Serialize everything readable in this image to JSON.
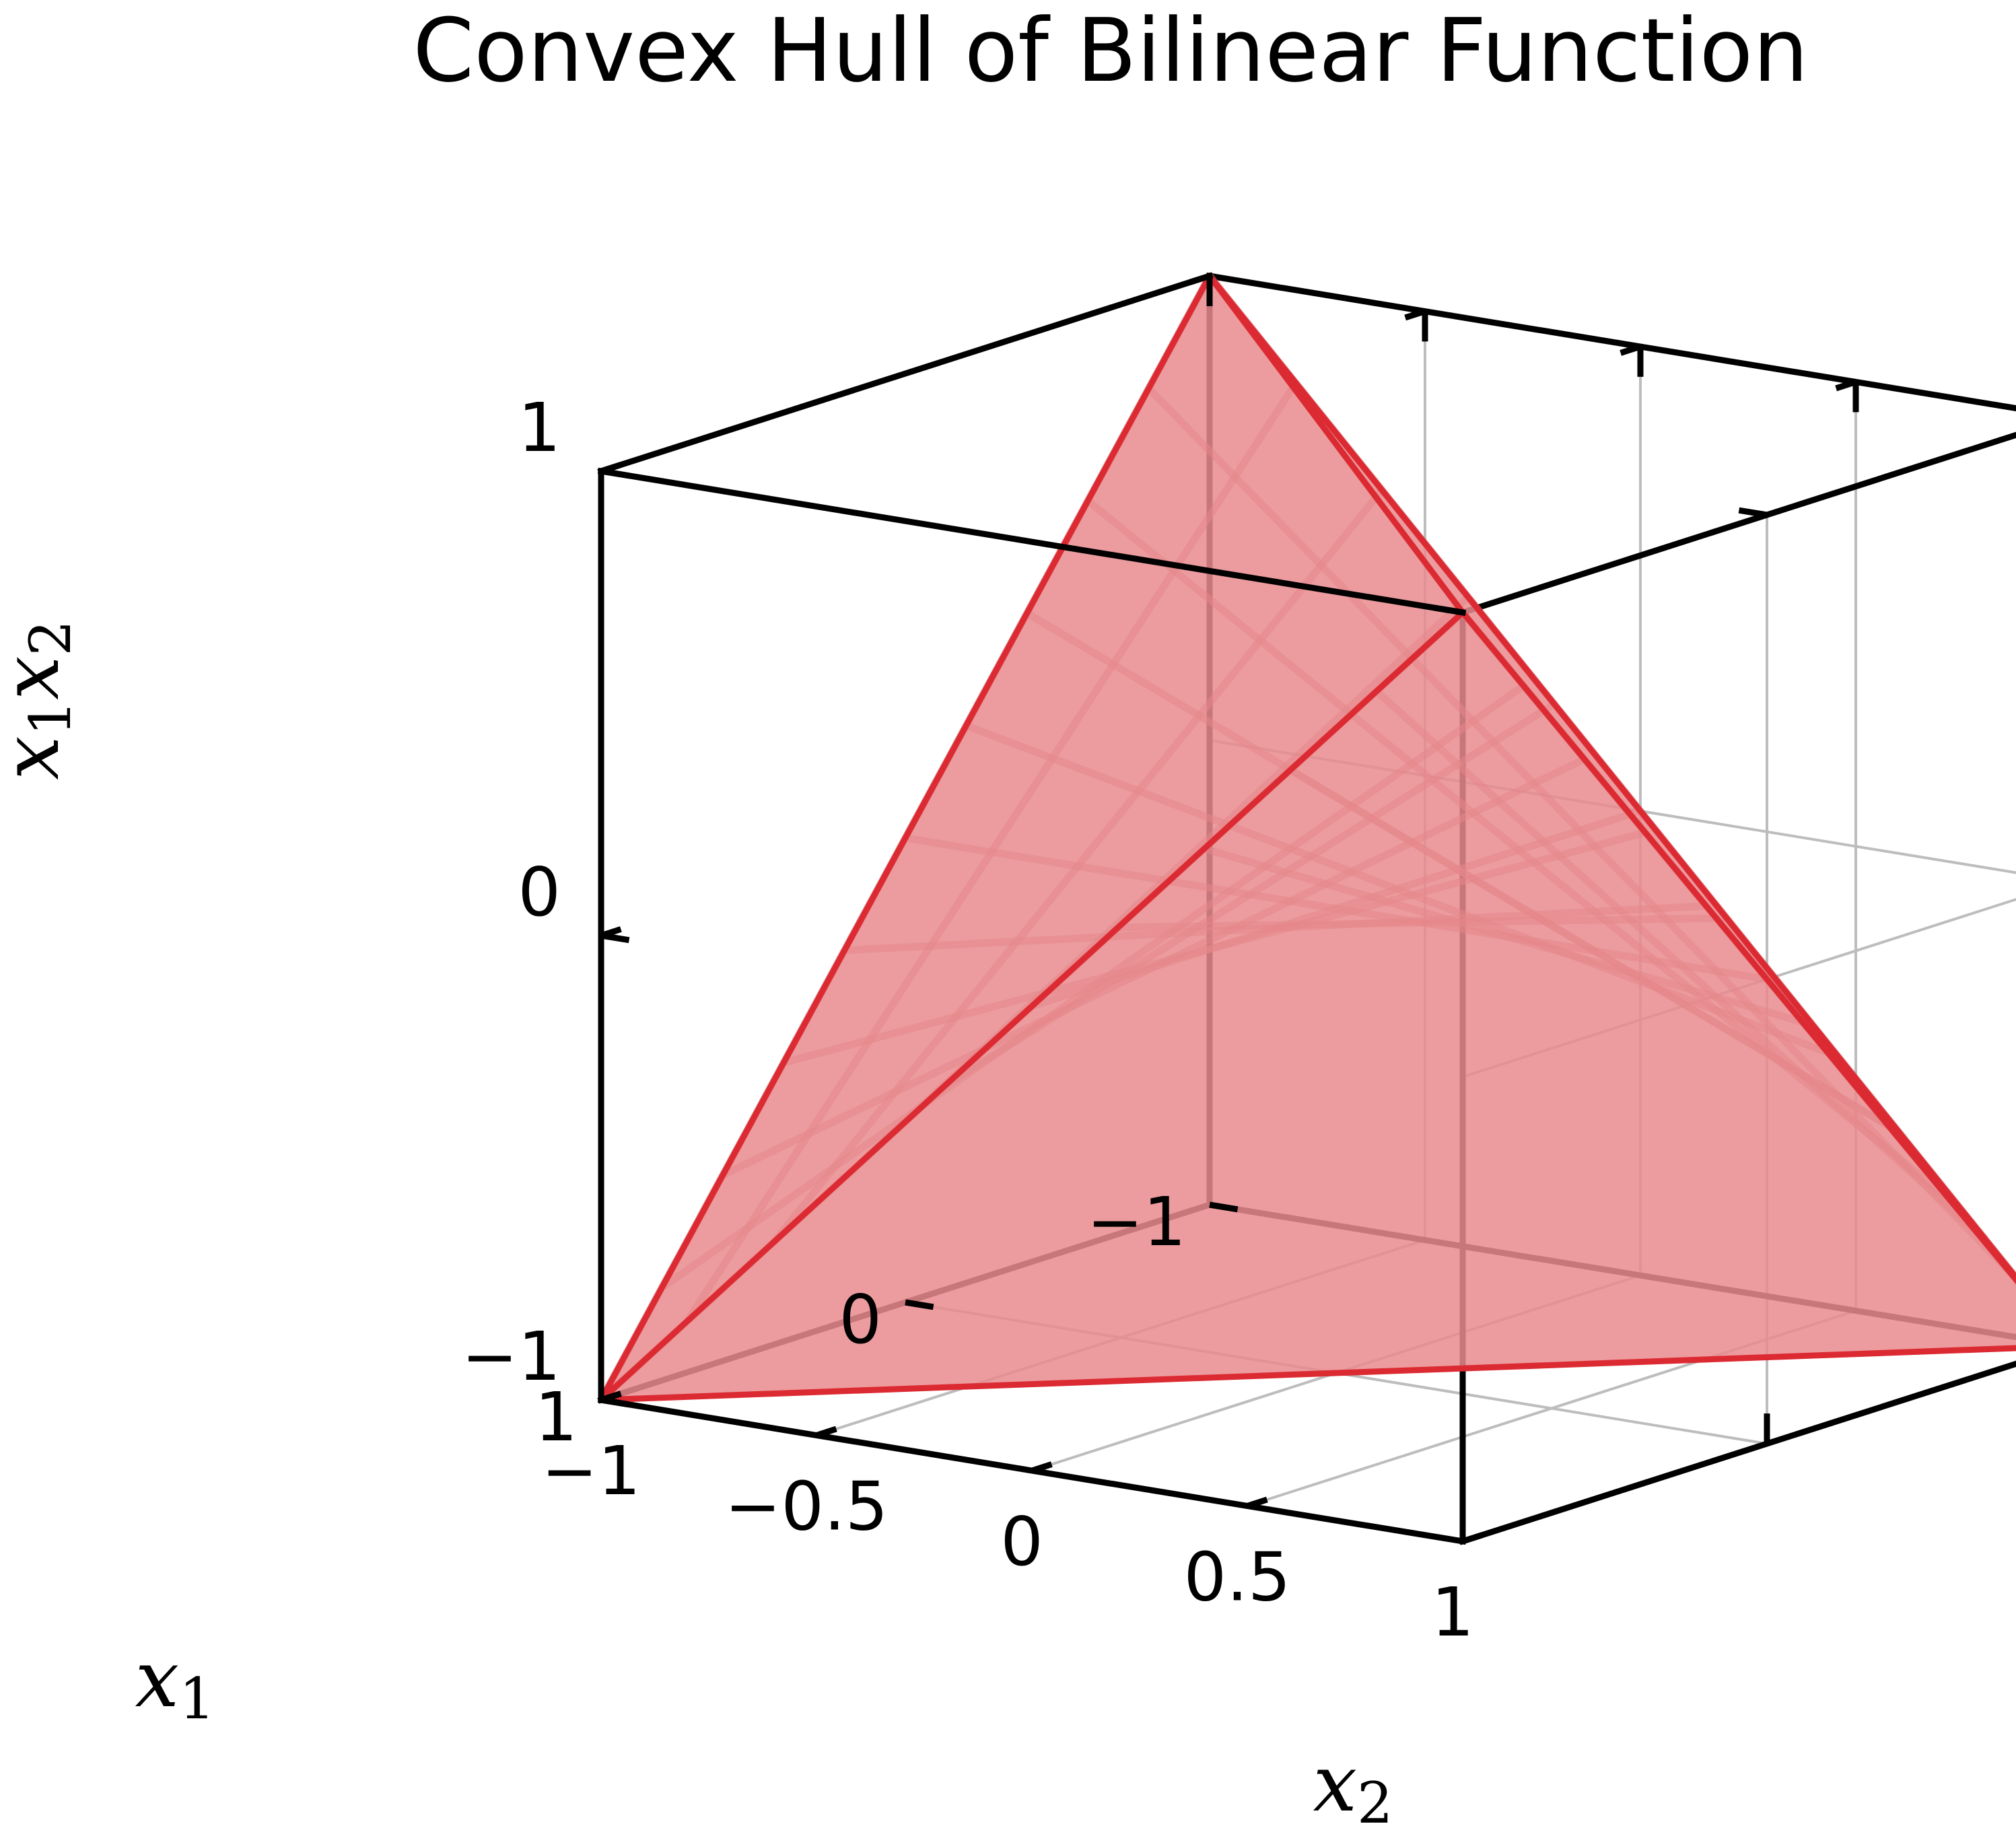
{
  "colors": {
    "hull_fill": "#e88a8e",
    "hull_edge": "#dc2a33",
    "surface_mesh": "#cf6f75",
    "grid": "#bdbdbd",
    "frame": "#000000"
  },
  "chart_data": {
    "type": "surface3d",
    "title": "Convex Hull of Bilinear Function",
    "axes": {
      "x1": {
        "label": "x",
        "label_sub": "1",
        "range": [
          -1,
          1
        ],
        "ticks": [
          -1,
          0,
          1
        ],
        "tick_labels": [
          "−1",
          "0",
          "1"
        ]
      },
      "x2": {
        "label": "x",
        "label_sub": "2",
        "range": [
          -1,
          1
        ],
        "ticks": [
          -1,
          -0.5,
          0,
          0.5,
          1
        ],
        "tick_labels": [
          "−1",
          "−0.5",
          "0",
          "0.5",
          "1"
        ]
      },
      "z": {
        "label": "x",
        "label_sub": "1",
        "label_tail": "x",
        "label_tail_sub": "2",
        "range": [
          -1,
          1
        ],
        "ticks": [
          -1,
          0,
          1
        ],
        "tick_labels": [
          "−1",
          "0",
          "1"
        ]
      }
    },
    "surface": {
      "function": "z = x1 * x2",
      "domain_x1": [
        -1,
        1
      ],
      "domain_x2": [
        -1,
        1
      ],
      "mesh_lines_per_axis": 11
    },
    "hull_vertices": [
      {
        "x1": -1,
        "x2": -1,
        "z": 1
      },
      {
        "x1": -1,
        "x2": 1,
        "z": -1
      },
      {
        "x1": 1,
        "x2": -1,
        "z": -1
      },
      {
        "x1": 1,
        "x2": 1,
        "z": 1
      }
    ],
    "grid": true,
    "legend": "none"
  }
}
